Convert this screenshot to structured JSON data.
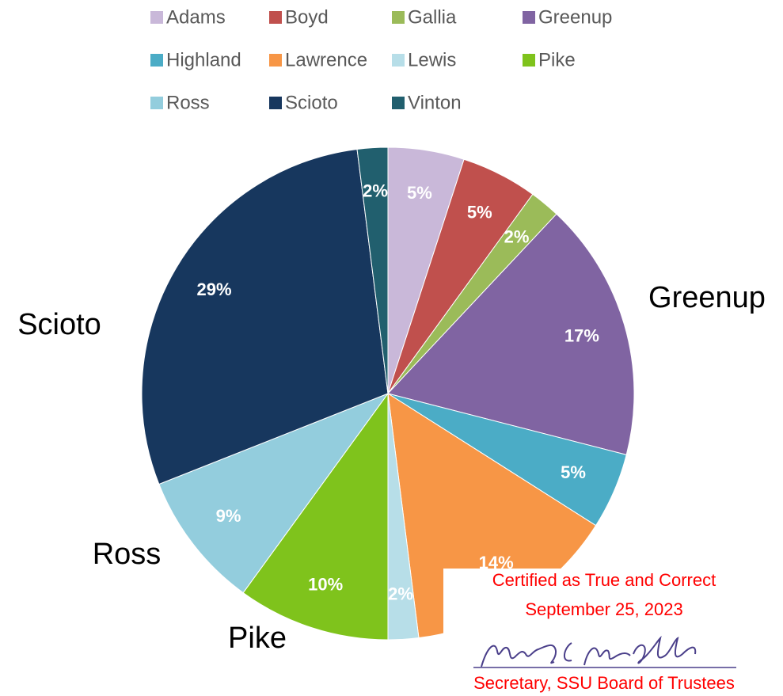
{
  "chart_data": {
    "type": "pie",
    "categories": [
      "Adams",
      "Boyd",
      "Gallia",
      "Greenup",
      "Highland",
      "Lawrence",
      "Lewis",
      "Pike",
      "Ross",
      "Scioto",
      "Vinton"
    ],
    "values": [
      5,
      5,
      2,
      17,
      5,
      14,
      2,
      10,
      9,
      29,
      2
    ],
    "value_labels": [
      "5%",
      "5%",
      "2%",
      "17%",
      "5%",
      "14%",
      "2%",
      "10%",
      "9%",
      "29%",
      "2%"
    ],
    "colors": [
      "#c9b8d9",
      "#c0504d",
      "#9bbb59",
      "#8064a2",
      "#4bacc6",
      "#f79646",
      "#b7dee8",
      "#7fc31c",
      "#93cddd",
      "#17375e",
      "#215f6e"
    ],
    "legend": "top",
    "callouts": [
      "Greenup",
      "Lawrence",
      "Pike",
      "Ross",
      "Scioto"
    ],
    "annotations": [
      "Certified as True and Correct",
      "September 25, 2023",
      "Secretary, SSU Board of Trustees"
    ]
  }
}
